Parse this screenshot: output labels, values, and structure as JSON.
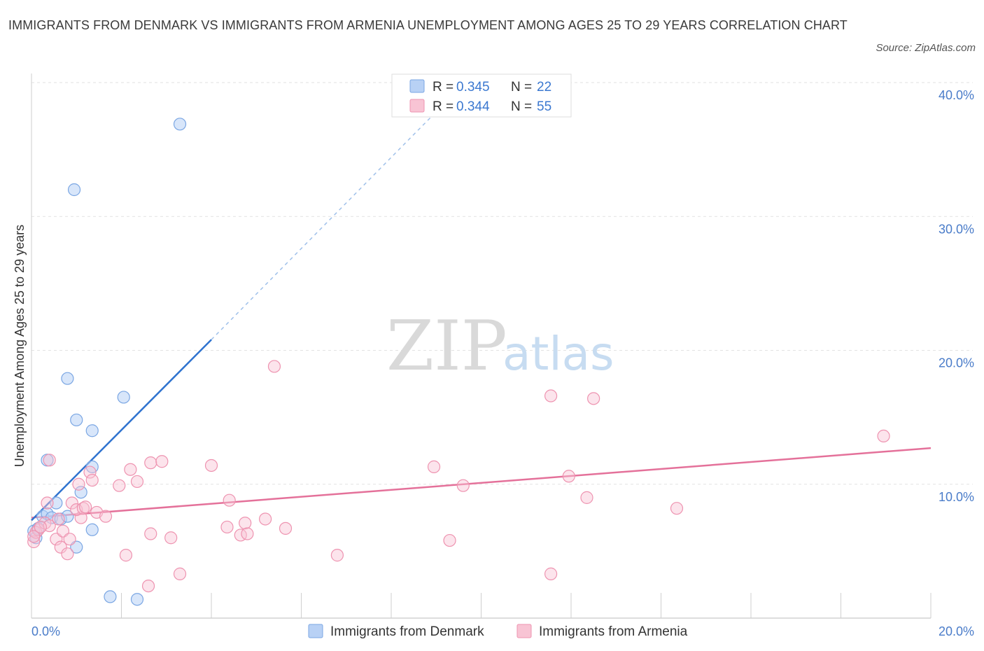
{
  "title": "IMMIGRANTS FROM DENMARK VS IMMIGRANTS FROM ARMENIA UNEMPLOYMENT AMONG AGES 25 TO 29 YEARS CORRELATION CHART",
  "source": "Source: ZipAtlas.com",
  "watermark": {
    "zip": "ZIP",
    "atlas": "atlas"
  },
  "colors": {
    "denmark_fill": "#b8d1f5",
    "denmark_stroke": "#7aa6e3",
    "denmark_line": "#2f73cf",
    "armenia_fill": "#f8c4d4",
    "armenia_stroke": "#ee93b0",
    "armenia_line": "#e4719a",
    "grid": "#e2e2e2",
    "tick_text": "#4a7cc9"
  },
  "legend_top": {
    "rows": [
      {
        "r_label": "R = ",
        "r_value": "0.345",
        "n_label": "N = ",
        "n_value": "22"
      },
      {
        "r_label": "R = ",
        "r_value": "0.344",
        "n_label": "N = ",
        "n_value": "55"
      }
    ]
  },
  "chart_data": {
    "type": "scatter",
    "title": "IMMIGRANTS FROM DENMARK VS IMMIGRANTS FROM ARMENIA UNEMPLOYMENT AMONG AGES 25 TO 29 YEARS CORRELATION CHART",
    "xlabel": "",
    "ylabel": "Unemployment Among Ages 25 to 29 years",
    "xlim": [
      0,
      20
    ],
    "ylim": [
      0,
      40
    ],
    "x_tick_labels": [
      "0.0%",
      "20.0%"
    ],
    "y_ticks": [
      10,
      20,
      30,
      40
    ],
    "y_tick_labels": [
      "10.0%",
      "20.0%",
      "30.0%",
      "40.0%"
    ],
    "grid": true,
    "legend_placement": "bottom-center",
    "series": [
      {
        "name": "Immigrants from Denmark",
        "r": 0.345,
        "n": 22,
        "points": [
          [
            0.05,
            6.5
          ],
          [
            0.1,
            6.0
          ],
          [
            0.15,
            6.7
          ],
          [
            0.25,
            7.6
          ],
          [
            0.35,
            7.8
          ],
          [
            0.45,
            7.5
          ],
          [
            0.55,
            8.6
          ],
          [
            0.65,
            7.4
          ],
          [
            0.35,
            11.8
          ],
          [
            0.8,
            7.6
          ],
          [
            1.0,
            5.3
          ],
          [
            1.1,
            9.4
          ],
          [
            1.35,
            6.6
          ],
          [
            1.35,
            14.0
          ],
          [
            1.0,
            14.8
          ],
          [
            1.35,
            11.3
          ],
          [
            0.8,
            17.9
          ],
          [
            2.05,
            16.5
          ],
          [
            0.95,
            32.0
          ],
          [
            3.3,
            36.9
          ],
          [
            1.75,
            1.6
          ],
          [
            2.35,
            1.4
          ]
        ],
        "trend": {
          "x_start": 0.0,
          "y_start": 7.3,
          "x_solid_end": 4.0,
          "y_solid_end": 20.8,
          "x_dash_end": 9.2,
          "y_dash_end": 38.5
        }
      },
      {
        "name": "Immigrants from Armenia",
        "r": 0.344,
        "n": 55,
        "points": [
          [
            0.05,
            5.7
          ],
          [
            0.1,
            6.4
          ],
          [
            0.15,
            6.6
          ],
          [
            0.3,
            7.1
          ],
          [
            0.35,
            8.6
          ],
          [
            0.4,
            6.9
          ],
          [
            0.4,
            11.8
          ],
          [
            0.55,
            5.9
          ],
          [
            0.65,
            5.3
          ],
          [
            0.7,
            6.5
          ],
          [
            0.8,
            4.8
          ],
          [
            0.85,
            5.9
          ],
          [
            0.9,
            8.6
          ],
          [
            1.05,
            10.0
          ],
          [
            1.1,
            7.5
          ],
          [
            1.0,
            8.1
          ],
          [
            1.15,
            8.2
          ],
          [
            1.3,
            10.9
          ],
          [
            1.35,
            10.3
          ],
          [
            1.45,
            7.9
          ],
          [
            1.65,
            7.6
          ],
          [
            1.95,
            9.9
          ],
          [
            2.1,
            4.7
          ],
          [
            2.2,
            11.1
          ],
          [
            2.35,
            10.2
          ],
          [
            2.6,
            2.4
          ],
          [
            2.65,
            6.3
          ],
          [
            2.65,
            11.6
          ],
          [
            2.9,
            11.7
          ],
          [
            3.3,
            3.3
          ],
          [
            4.0,
            11.4
          ],
          [
            4.35,
            6.8
          ],
          [
            4.4,
            8.8
          ],
          [
            4.65,
            6.2
          ],
          [
            4.75,
            7.1
          ],
          [
            4.8,
            6.3
          ],
          [
            5.2,
            7.4
          ],
          [
            5.4,
            18.8
          ],
          [
            5.65,
            6.7
          ],
          [
            6.8,
            4.7
          ],
          [
            8.95,
            11.3
          ],
          [
            9.3,
            5.8
          ],
          [
            9.6,
            9.9
          ],
          [
            11.55,
            3.3
          ],
          [
            11.55,
            16.6
          ],
          [
            11.95,
            10.6
          ],
          [
            12.35,
            9.0
          ],
          [
            12.5,
            16.4
          ],
          [
            14.35,
            8.2
          ],
          [
            18.95,
            13.6
          ],
          [
            0.05,
            6.1
          ],
          [
            0.2,
            6.8
          ],
          [
            0.6,
            7.4
          ],
          [
            1.2,
            8.3
          ],
          [
            3.1,
            6.0
          ]
        ],
        "trend": {
          "x_start": 0.0,
          "y_start": 7.5,
          "x_end": 20.0,
          "y_end": 12.7
        }
      }
    ]
  }
}
